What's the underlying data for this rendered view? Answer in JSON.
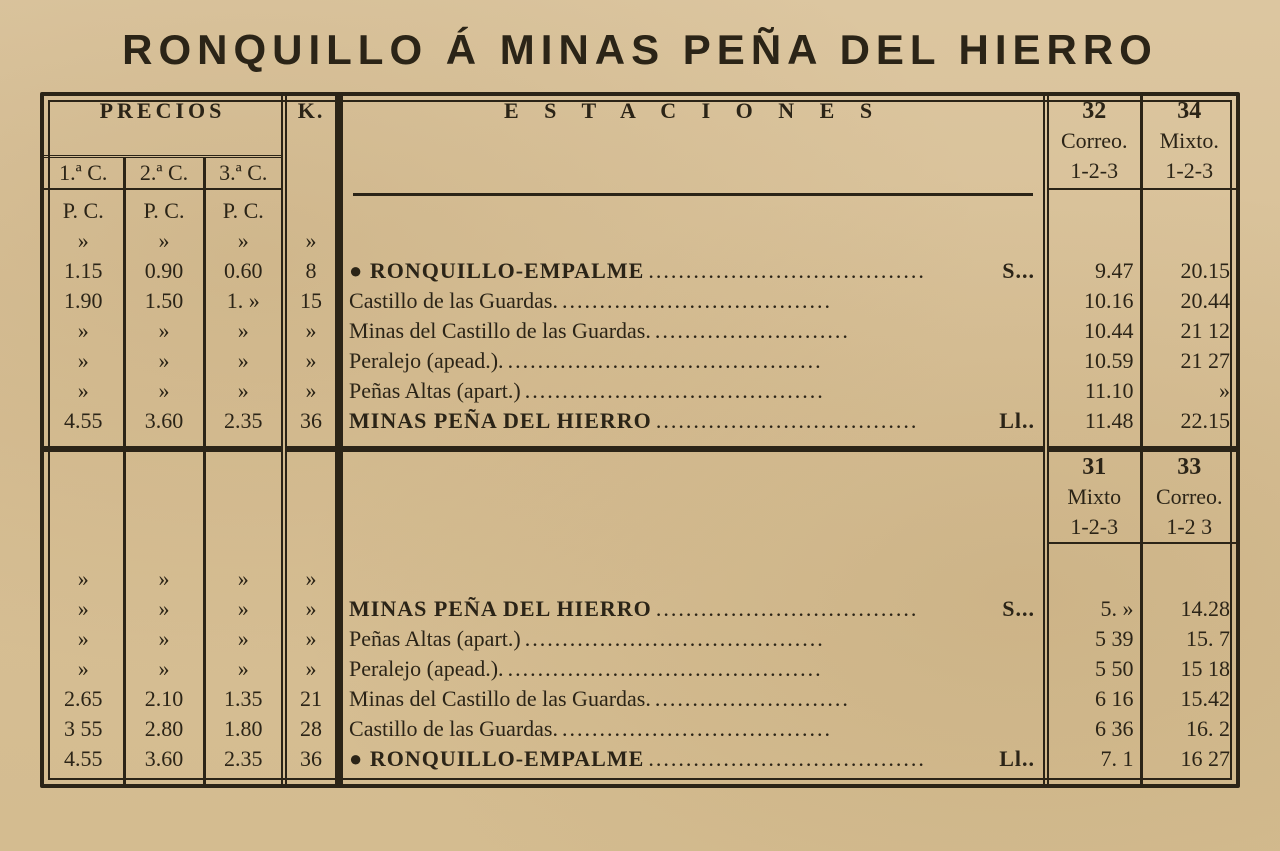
{
  "title": "RONQUILLO Á MINAS PEÑA DEL HIERRO",
  "headers": {
    "precios": "PRECIOS",
    "k": "K.",
    "estaciones": "E S T A C I O N E S",
    "clase1": "1.ª C.",
    "clase2": "2.ª C.",
    "clase3": "3.ª C.",
    "pc": "P. C.",
    "train32": {
      "num": "32",
      "type": "Correo.",
      "cls": "1-2-3"
    },
    "train34": {
      "num": "34",
      "type": "Mixto.",
      "cls": "1-2-3"
    },
    "train31": {
      "num": "31",
      "type": "Mixto",
      "cls": "1-2-3"
    },
    "train33": {
      "num": "33",
      "type": "Correo.",
      "cls": "1-2 3"
    }
  },
  "outbound": [
    {
      "p1": "»",
      "p2": "»",
      "p3": "»",
      "k": "»",
      "station": "",
      "suffix": "",
      "bold": false,
      "t32": "",
      "t34": ""
    },
    {
      "p1": "1.15",
      "p2": "0.90",
      "p3": "0.60",
      "k": "8",
      "station": "● RONQUILLO-EMPALME",
      "suffix": "S...",
      "bold": true,
      "t32": "9.47",
      "t34": "20.15"
    },
    {
      "p1": "1.90",
      "p2": "1.50",
      "p3": "1. »",
      "k": "15",
      "station": "Castillo de las Guardas.",
      "suffix": "",
      "bold": false,
      "t32": "10.16",
      "t34": "20.44"
    },
    {
      "p1": "»",
      "p2": "»",
      "p3": "»",
      "k": "»",
      "station": "Minas del Castillo de las Guardas.",
      "suffix": "",
      "bold": false,
      "t32": "10.44",
      "t34": "21 12"
    },
    {
      "p1": "»",
      "p2": "»",
      "p3": "»",
      "k": "»",
      "station": "Peralejo (apead.).",
      "suffix": "",
      "bold": false,
      "t32": "10.59",
      "t34": "21 27"
    },
    {
      "p1": "»",
      "p2": "»",
      "p3": "»",
      "k": "»",
      "station": "Peñas Altas (apart.)",
      "suffix": "",
      "bold": false,
      "t32": "11.10",
      "t34": "»"
    },
    {
      "p1": "4.55",
      "p2": "3.60",
      "p3": "2.35",
      "k": "36",
      "station": "MINAS PEÑA DEL HIERRO",
      "suffix": "Ll..",
      "bold": true,
      "t32": "11.48",
      "t34": "22.15"
    }
  ],
  "inbound": [
    {
      "p1": "»",
      "p2": "»",
      "p3": "»",
      "k": "»",
      "station": "",
      "suffix": "",
      "bold": false,
      "t31": "",
      "t33": ""
    },
    {
      "p1": "»",
      "p2": "»",
      "p3": "»",
      "k": "»",
      "station": "MINAS PEÑA DEL HIERRO",
      "suffix": "S...",
      "bold": true,
      "t31": "5. »",
      "t33": "14.28"
    },
    {
      "p1": "»",
      "p2": "»",
      "p3": "»",
      "k": "»",
      "station": "Peñas Altas (apart.)",
      "suffix": "",
      "bold": false,
      "t31": "5 39",
      "t33": "15. 7"
    },
    {
      "p1": "»",
      "p2": "»",
      "p3": "»",
      "k": "»",
      "station": "Peralejo (apead.).",
      "suffix": "",
      "bold": false,
      "t31": "5 50",
      "t33": "15 18"
    },
    {
      "p1": "2.65",
      "p2": "2.10",
      "p3": "1.35",
      "k": "21",
      "station": "Minas del Castillo de las Guardas.",
      "suffix": "",
      "bold": false,
      "t31": "6 16",
      "t33": "15.42"
    },
    {
      "p1": "3 55",
      "p2": "2.80",
      "p3": "1.80",
      "k": "28",
      "station": "Castillo de las Guardas.",
      "suffix": "",
      "bold": false,
      "t31": "6 36",
      "t33": "16. 2"
    },
    {
      "p1": "4.55",
      "p2": "3.60",
      "p3": "2.35",
      "k": "36",
      "station": "● RONQUILLO-EMPALME",
      "suffix": "Ll..",
      "bold": true,
      "t31": "7. 1",
      "t33": "16 27"
    }
  ],
  "style": {
    "ink": "#2b2417",
    "paper": "#d9c29a"
  }
}
